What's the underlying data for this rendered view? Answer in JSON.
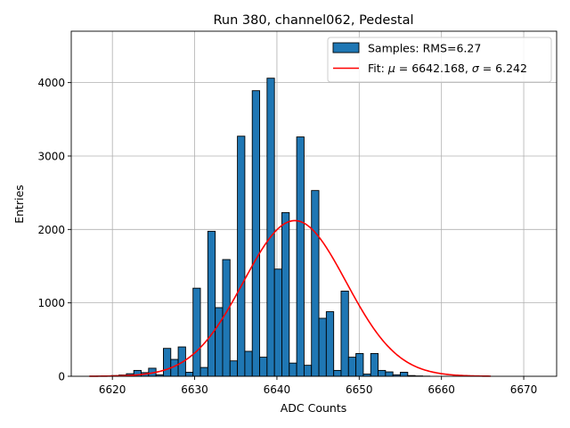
{
  "chart_data": {
    "type": "bar",
    "title": "Run 380, channel062, Pedestal",
    "xlabel": "ADC Counts",
    "ylabel": "Entries",
    "xlim": [
      6615,
      6674
    ],
    "ylim": [
      0,
      4700
    ],
    "x_ticks": [
      "6620",
      "6630",
      "6640",
      "6650",
      "6660",
      "6670"
    ],
    "x_tick_values": [
      6620,
      6630,
      6640,
      6650,
      6660,
      6670
    ],
    "y_ticks": [
      "0",
      "1000",
      "2000",
      "3000",
      "4000"
    ],
    "y_tick_values": [
      0,
      1000,
      2000,
      3000,
      4000
    ],
    "grid": true,
    "legend_position": "top-right",
    "colors": {
      "bars": "#1f77b4",
      "bar_edge": "#000000",
      "fit": "#ff0000"
    },
    "histogram": {
      "name": "Samples: RMS=6.27",
      "bin_edges_start": 6617.2,
      "bin_width": 0.9,
      "counts": [
        0,
        2,
        5,
        10,
        18,
        35,
        80,
        50,
        110,
        20,
        380,
        230,
        400,
        55,
        1200,
        120,
        1975,
        935,
        1590,
        210,
        3270,
        340,
        3890,
        260,
        4060,
        1460,
        2230,
        180,
        3260,
        150,
        2530,
        790,
        880,
        80,
        1160,
        260,
        310,
        30,
        310,
        80,
        60,
        20,
        55,
        10,
        5,
        2,
        0,
        0,
        0,
        0,
        0,
        0,
        0,
        0
      ]
    },
    "fit": {
      "name": "Fit: μ = 6642.168, σ = 6.242",
      "legend_prefix": "Fit: ",
      "mu_symbol": "μ",
      "mu_text": " = 6642.168, ",
      "sigma_symbol": "σ",
      "sigma_text": " = 6.242",
      "mu": 6642.168,
      "sigma": 6.242,
      "amplitude": 2120,
      "x_range": [
        6617.2,
        6666.0
      ]
    }
  }
}
